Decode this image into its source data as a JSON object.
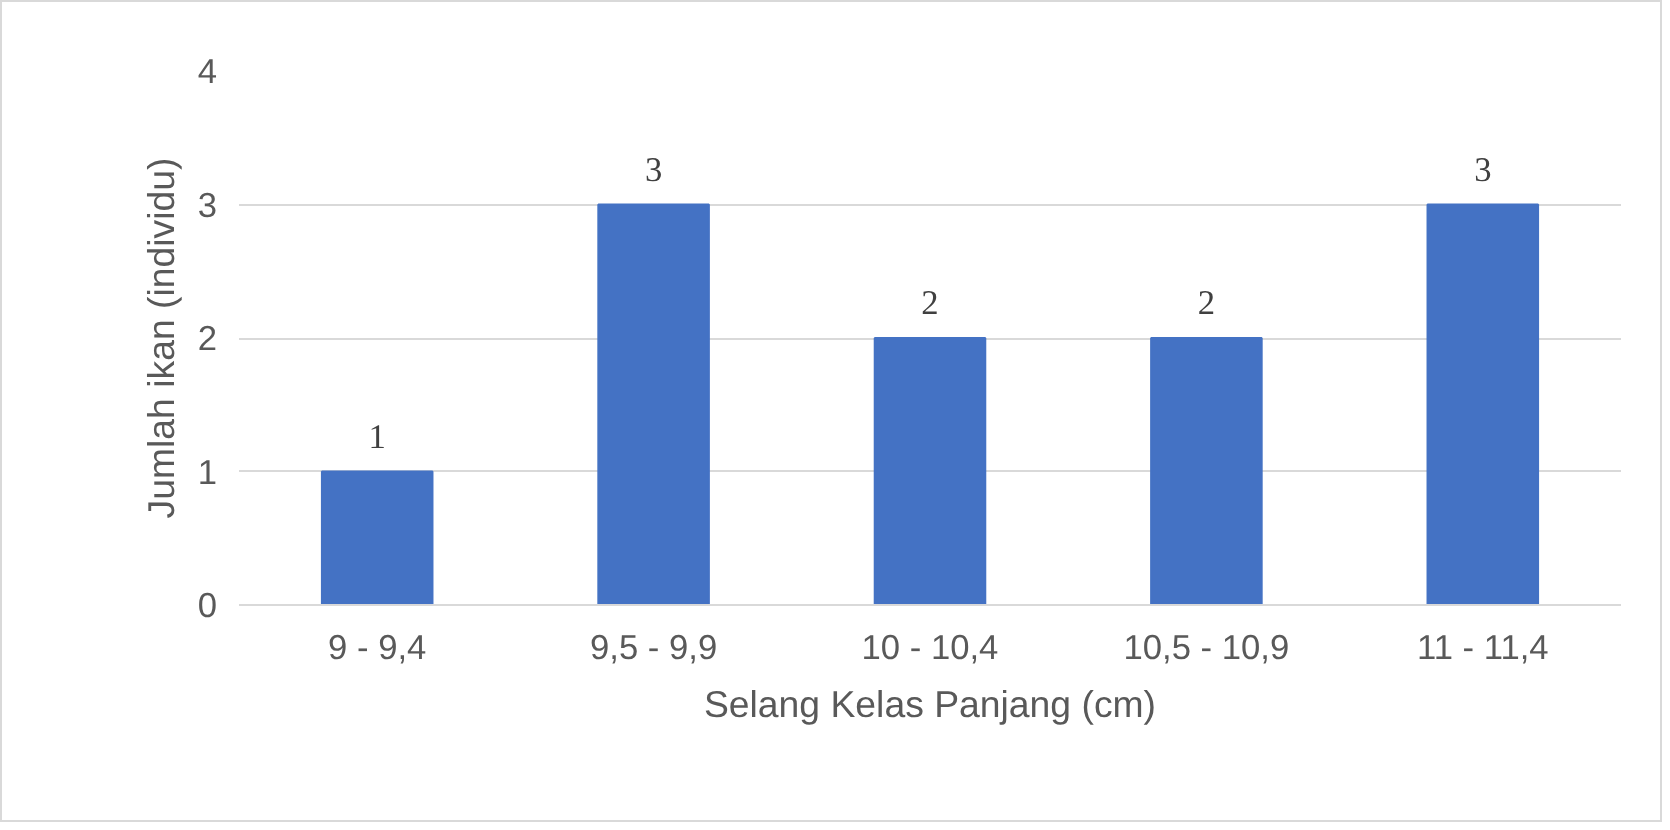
{
  "chart_data": {
    "type": "bar",
    "xlabel": "Selang Kelas Panjang (cm)",
    "ylabel": "Jumlah ikan (individu)",
    "categories": [
      "9 - 9,4",
      "9,5 - 9,9",
      "10 - 10,4",
      "10,5 - 10,9",
      "11 - 11,4"
    ],
    "values": [
      1,
      3,
      2,
      2,
      3
    ],
    "color": "#4472c4",
    "ylim": [
      0,
      4
    ],
    "yticks": [
      0,
      1,
      2,
      3,
      4
    ],
    "grid": "y",
    "data_labels": true
  }
}
